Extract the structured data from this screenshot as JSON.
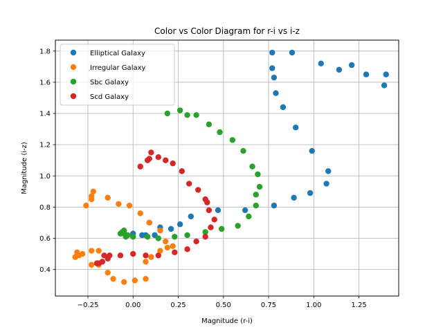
{
  "chart_data": {
    "type": "scatter",
    "title": "Color vs Color Diagram for r-i vs i-z",
    "xlabel": "Magnitude (r-i)",
    "ylabel": "Magnitude (i-z)",
    "xlim": [
      -0.43,
      1.47
    ],
    "ylim": [
      0.23,
      1.87
    ],
    "xticks": [
      -0.25,
      0.0,
      0.25,
      0.5,
      0.75,
      1.0,
      1.25
    ],
    "xtick_labels": [
      "−0.25",
      "0.00",
      "0.25",
      "0.50",
      "0.75",
      "1.00",
      "1.25"
    ],
    "yticks": [
      0.4,
      0.6,
      0.8,
      1.0,
      1.2,
      1.4,
      1.6,
      1.8
    ],
    "ytick_labels": [
      "0.4",
      "0.6",
      "0.8",
      "1.0",
      "1.2",
      "1.4",
      "1.6",
      "1.8"
    ],
    "grid": true,
    "legend_position": "top-left",
    "series": [
      {
        "name": "Elliptical Galaxy",
        "color": "#1f77b4",
        "points": [
          [
            0.77,
            1.79
          ],
          [
            0.88,
            1.79
          ],
          [
            1.04,
            1.72
          ],
          [
            1.21,
            1.71
          ],
          [
            1.14,
            1.68
          ],
          [
            0.77,
            1.69
          ],
          [
            0.78,
            1.63
          ],
          [
            1.29,
            1.65
          ],
          [
            1.4,
            1.65
          ],
          [
            1.39,
            1.58
          ],
          [
            0.79,
            1.53
          ],
          [
            0.83,
            1.44
          ],
          [
            0.9,
            1.31
          ],
          [
            0.99,
            1.16
          ],
          [
            1.08,
            1.03
          ],
          [
            1.07,
            0.95
          ],
          [
            0.98,
            0.89
          ],
          [
            0.89,
            0.86
          ],
          [
            0.78,
            0.81
          ],
          [
            0.62,
            0.78
          ],
          [
            0.47,
            0.78
          ],
          [
            0.32,
            0.74
          ],
          [
            0.26,
            0.69
          ],
          [
            0.21,
            0.66
          ],
          [
            0.15,
            0.67
          ],
          [
            0.09,
            0.7
          ],
          [
            0.12,
            0.62
          ],
          [
            0.07,
            0.62
          ],
          [
            0.05,
            0.62
          ],
          [
            0.0,
            0.63
          ],
          [
            -0.05,
            0.63
          ]
        ]
      },
      {
        "name": "Irregular Galaxy",
        "color": "#ff7f0e",
        "points": [
          [
            -0.22,
            0.9
          ],
          [
            -0.23,
            0.87
          ],
          [
            -0.23,
            0.85
          ],
          [
            -0.26,
            0.81
          ],
          [
            -0.14,
            0.86
          ],
          [
            -0.08,
            0.82
          ],
          [
            -0.02,
            0.81
          ],
          [
            0.04,
            0.76
          ],
          [
            0.09,
            0.7
          ],
          [
            0.15,
            0.65
          ],
          [
            0.18,
            0.58
          ],
          [
            0.19,
            0.54
          ],
          [
            0.22,
            0.55
          ],
          [
            0.15,
            0.52
          ],
          [
            0.1,
            0.48
          ],
          [
            0.07,
            0.45
          ],
          [
            0.07,
            0.34
          ],
          [
            0.01,
            0.33
          ],
          [
            -0.05,
            0.32
          ],
          [
            -0.11,
            0.34
          ],
          [
            -0.14,
            0.38
          ],
          [
            -0.19,
            0.43
          ],
          [
            -0.23,
            0.43
          ],
          [
            -0.19,
            0.52
          ],
          [
            -0.23,
            0.52
          ],
          [
            -0.28,
            0.5
          ],
          [
            -0.3,
            0.49
          ],
          [
            -0.31,
            0.51
          ],
          [
            -0.32,
            0.48
          ]
        ]
      },
      {
        "name": "Sbc Galaxy",
        "color": "#2ca02c",
        "points": [
          [
            0.26,
            1.42
          ],
          [
            0.19,
            1.4
          ],
          [
            0.3,
            1.39
          ],
          [
            0.35,
            1.39
          ],
          [
            0.42,
            1.33
          ],
          [
            0.48,
            1.28
          ],
          [
            0.55,
            1.23
          ],
          [
            0.61,
            1.16
          ],
          [
            0.66,
            1.06
          ],
          [
            0.69,
            1.01
          ],
          [
            0.7,
            0.93
          ],
          [
            0.68,
            0.88
          ],
          [
            0.68,
            0.81
          ],
          [
            0.64,
            0.74
          ],
          [
            0.58,
            0.68
          ],
          [
            0.49,
            0.66
          ],
          [
            0.4,
            0.64
          ],
          [
            0.3,
            0.62
          ],
          [
            0.23,
            0.61
          ],
          [
            0.14,
            0.6
          ],
          [
            0.08,
            0.61
          ],
          [
            0.0,
            0.61
          ],
          [
            -0.04,
            0.61
          ],
          [
            -0.03,
            0.62
          ],
          [
            -0.05,
            0.63
          ],
          [
            -0.07,
            0.63
          ],
          [
            -0.06,
            0.64
          ],
          [
            -0.05,
            0.65
          ]
        ]
      },
      {
        "name": "Scd Galaxy",
        "color": "#d62728",
        "points": [
          [
            0.1,
            1.15
          ],
          [
            0.14,
            1.12
          ],
          [
            0.18,
            1.1
          ],
          [
            0.09,
            1.11
          ],
          [
            0.08,
            1.1
          ],
          [
            0.22,
            1.08
          ],
          [
            0.04,
            1.06
          ],
          [
            0.27,
            1.03
          ],
          [
            0.31,
            0.95
          ],
          [
            0.36,
            0.91
          ],
          [
            0.4,
            0.85
          ],
          [
            0.41,
            0.83
          ],
          [
            0.42,
            0.78
          ],
          [
            0.45,
            0.72
          ],
          [
            0.43,
            0.67
          ],
          [
            0.4,
            0.61
          ],
          [
            0.35,
            0.58
          ],
          [
            0.3,
            0.53
          ],
          [
            0.23,
            0.51
          ],
          [
            0.14,
            0.49
          ],
          [
            0.07,
            0.49
          ],
          [
            0.0,
            0.5
          ],
          [
            -0.07,
            0.49
          ],
          [
            -0.13,
            0.49
          ],
          [
            -0.14,
            0.47
          ],
          [
            -0.16,
            0.49
          ],
          [
            -0.17,
            0.45
          ],
          [
            -0.19,
            0.44
          ],
          [
            -0.2,
            0.44
          ]
        ]
      }
    ]
  }
}
